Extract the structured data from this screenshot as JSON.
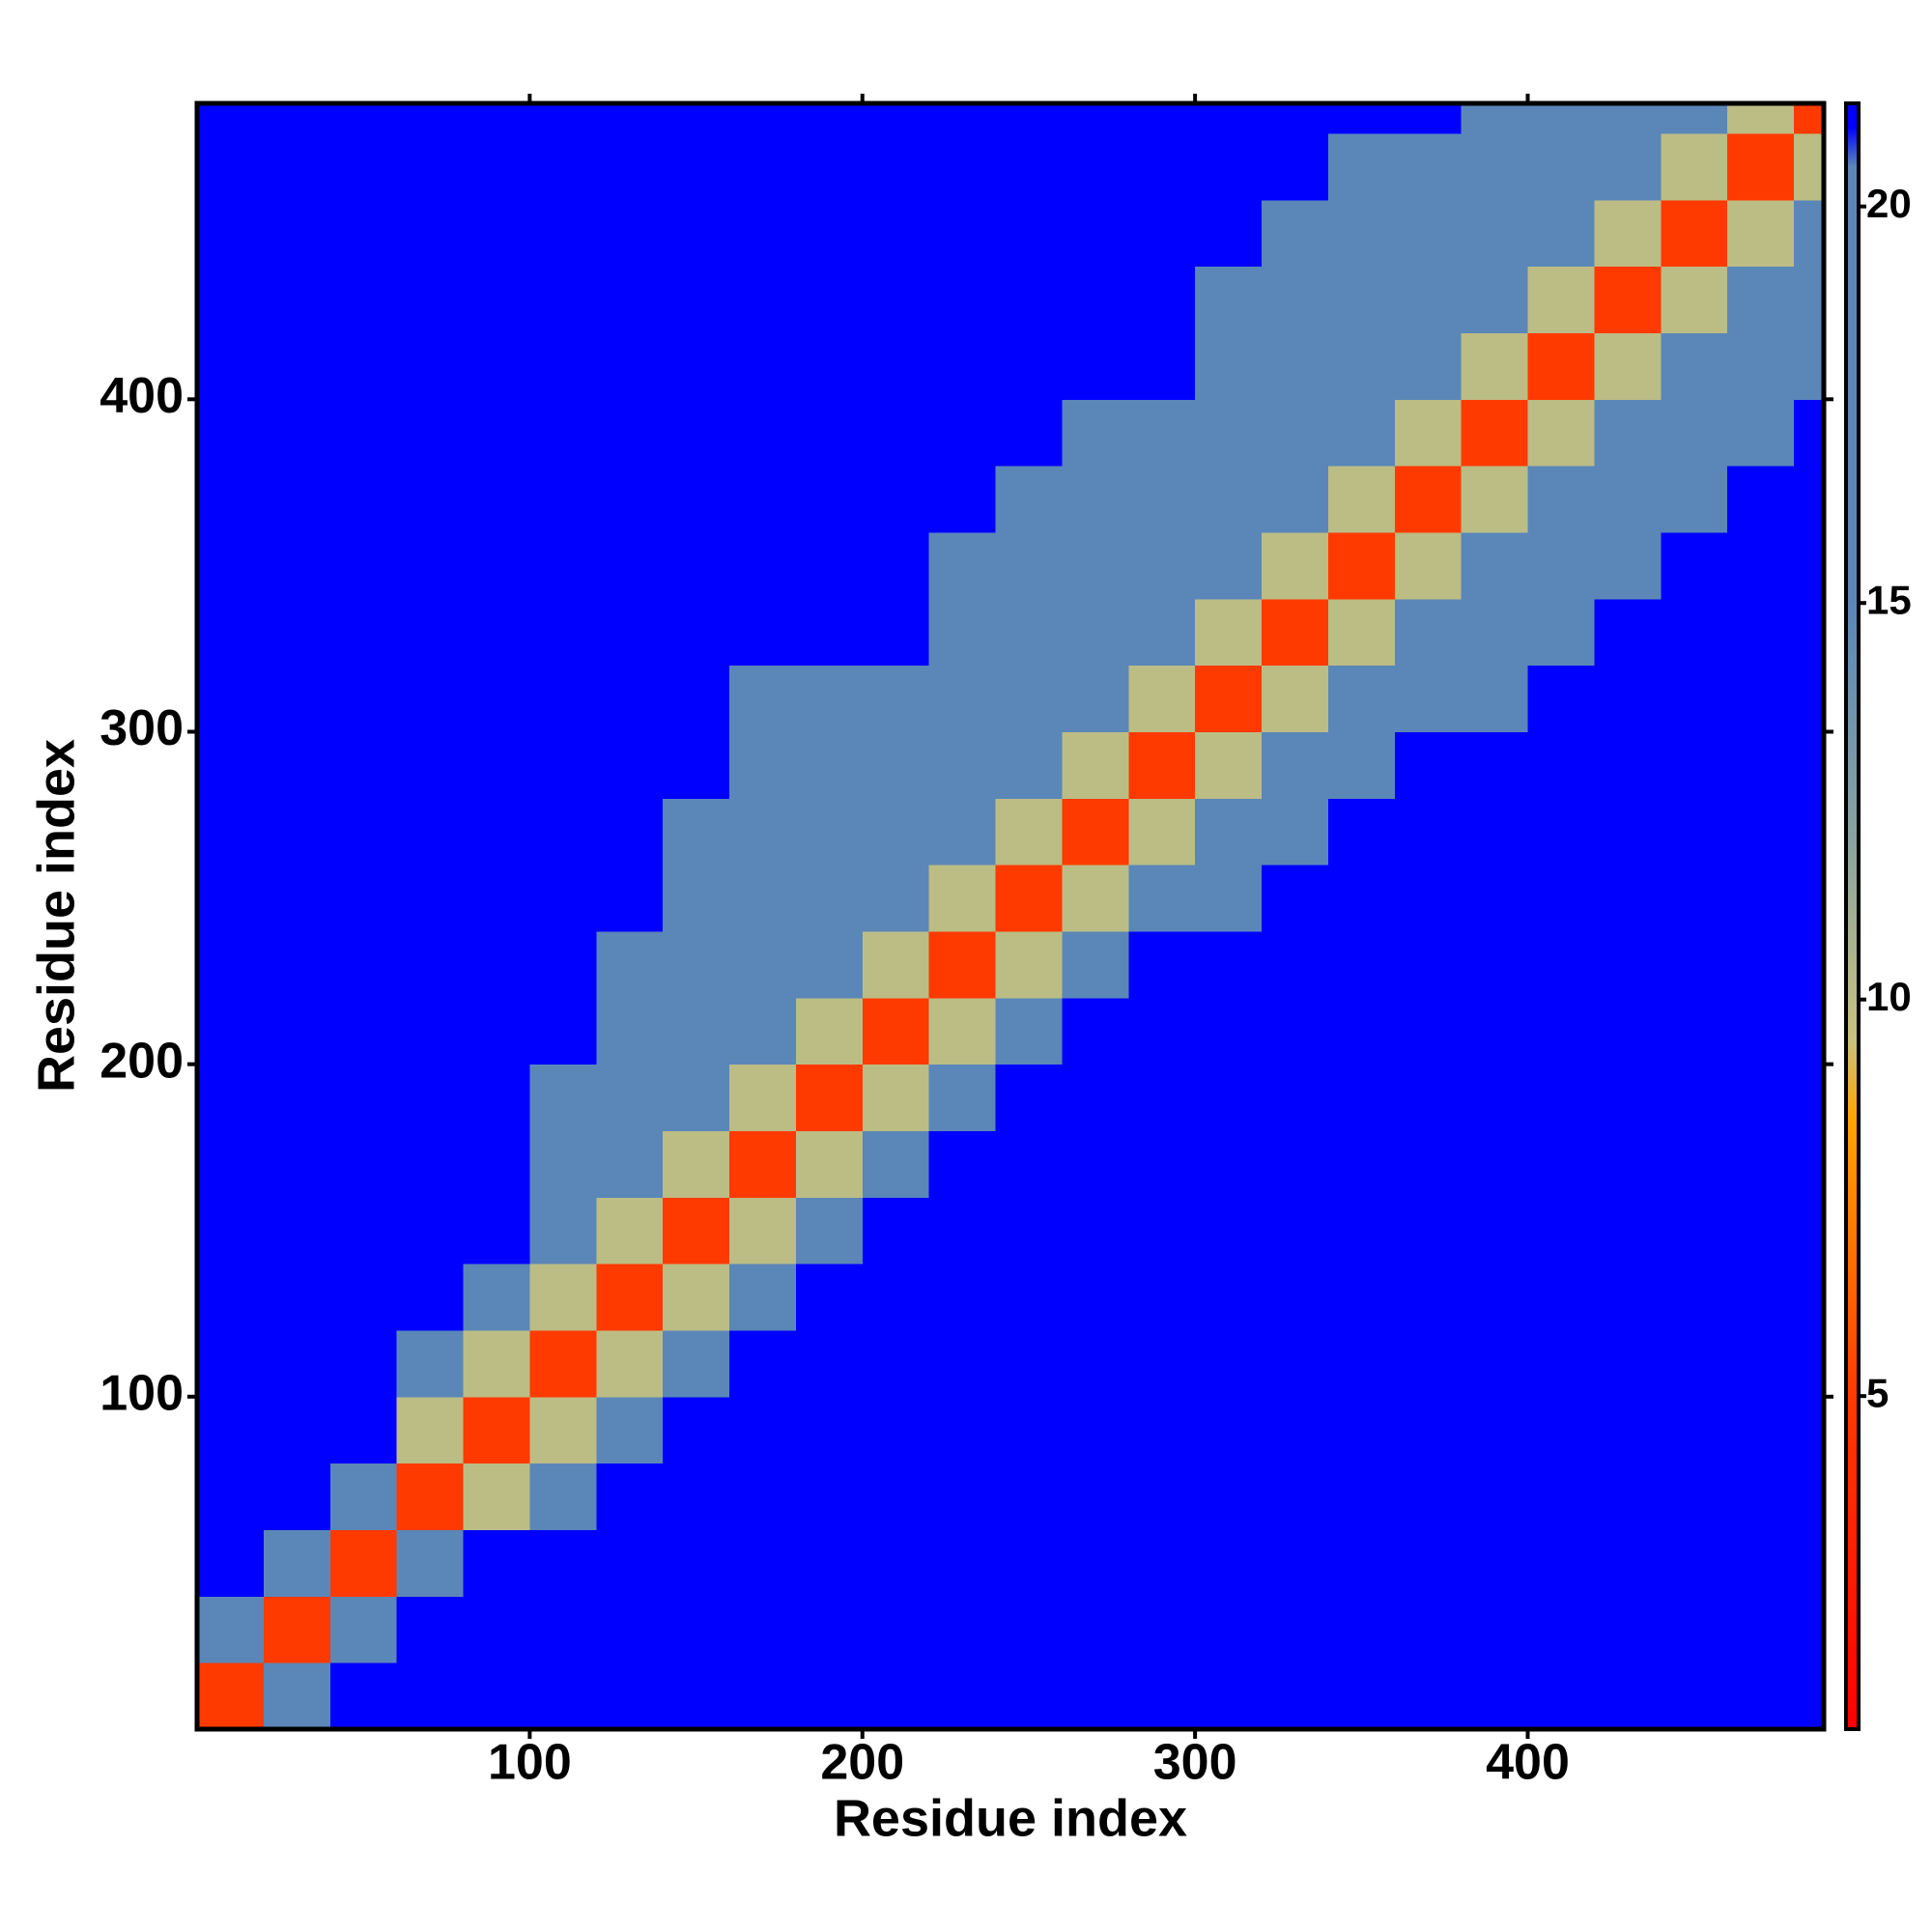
{
  "chart_data": {
    "type": "heatmap",
    "xlabel": "Residue index",
    "ylabel": "Residue index",
    "xlim": [
      0,
      489
    ],
    "ylim": [
      0,
      489
    ],
    "xticks": [
      100,
      200,
      300,
      400
    ],
    "yticks": [
      100,
      200,
      300,
      400
    ],
    "xbins": [
      0,
      20,
      40,
      60,
      80,
      100,
      120,
      140,
      160,
      180,
      200,
      220,
      240,
      260,
      280,
      300,
      320,
      340,
      360,
      380,
      400,
      420,
      440,
      460,
      480,
      489
    ],
    "ybins": [
      0,
      20,
      40,
      60,
      80,
      100,
      120,
      140,
      160,
      180,
      200,
      220,
      240,
      260,
      280,
      300,
      320,
      340,
      360,
      380,
      400,
      420,
      440,
      460,
      480,
      489
    ],
    "z": [
      [
        5,
        20,
        21,
        21,
        21,
        21,
        21,
        21,
        21,
        21,
        21,
        21,
        21,
        21,
        21,
        21,
        21,
        21,
        21,
        21,
        21,
        21,
        21,
        21,
        21
      ],
      [
        20,
        5,
        20,
        21,
        21,
        21,
        21,
        21,
        21,
        21,
        21,
        21,
        21,
        21,
        21,
        21,
        21,
        21,
        21,
        21,
        21,
        21,
        21,
        21,
        21
      ],
      [
        21,
        20,
        5,
        19,
        21,
        21,
        21,
        21,
        21,
        21,
        21,
        21,
        21,
        21,
        21,
        21,
        21,
        21,
        21,
        21,
        21,
        21,
        21,
        21,
        21
      ],
      [
        21,
        21,
        18,
        5,
        10,
        19,
        21,
        21,
        21,
        21,
        21,
        21,
        21,
        21,
        21,
        21,
        21,
        21,
        21,
        21,
        21,
        21,
        21,
        21,
        21
      ],
      [
        21,
        21,
        21,
        10,
        5,
        10,
        19,
        21,
        21,
        21,
        21,
        21,
        21,
        21,
        21,
        21,
        21,
        21,
        21,
        21,
        21,
        21,
        21,
        21,
        21
      ],
      [
        21,
        21,
        21,
        19,
        10,
        5,
        10,
        19,
        21,
        21,
        21,
        21,
        21,
        21,
        21,
        21,
        21,
        21,
        21,
        21,
        21,
        21,
        21,
        21,
        21
      ],
      [
        21,
        21,
        21,
        21,
        19,
        10,
        5,
        10,
        19,
        21,
        21,
        21,
        21,
        21,
        21,
        21,
        21,
        21,
        21,
        21,
        21,
        21,
        21,
        21,
        21
      ],
      [
        21,
        21,
        21,
        21,
        21,
        17,
        10,
        5,
        10,
        19,
        21,
        21,
        21,
        21,
        21,
        21,
        21,
        21,
        21,
        21,
        21,
        21,
        21,
        21,
        21
      ],
      [
        21,
        21,
        21,
        21,
        21,
        17,
        17,
        10,
        5,
        10,
        19,
        21,
        21,
        21,
        21,
        21,
        21,
        21,
        21,
        21,
        21,
        21,
        21,
        21,
        21
      ],
      [
        21,
        21,
        21,
        21,
        21,
        19,
        17,
        17,
        10,
        5,
        10,
        19,
        21,
        21,
        21,
        21,
        21,
        21,
        21,
        21,
        21,
        21,
        21,
        21,
        21
      ],
      [
        21,
        21,
        21,
        21,
        21,
        21,
        17,
        17,
        17,
        10,
        5,
        10,
        19,
        21,
        21,
        21,
        21,
        21,
        21,
        21,
        21,
        21,
        21,
        21,
        21
      ],
      [
        21,
        21,
        21,
        21,
        21,
        21,
        19,
        17,
        17,
        17,
        10,
        5,
        10,
        19,
        21,
        21,
        21,
        21,
        21,
        21,
        21,
        21,
        21,
        21,
        21
      ],
      [
        21,
        21,
        21,
        21,
        21,
        21,
        21,
        17,
        17,
        17,
        17,
        10,
        5,
        10,
        19,
        19,
        21,
        21,
        21,
        21,
        21,
        21,
        21,
        21,
        21
      ],
      [
        21,
        21,
        21,
        21,
        21,
        21,
        21,
        19,
        17,
        17,
        17,
        17,
        10,
        5,
        10,
        17,
        19,
        21,
        21,
        21,
        21,
        21,
        21,
        21,
        21
      ],
      [
        21,
        21,
        21,
        21,
        21,
        21,
        21,
        21,
        17,
        17,
        17,
        17,
        17,
        10,
        5,
        10,
        17,
        19,
        21,
        21,
        21,
        21,
        21,
        21,
        21
      ],
      [
        21,
        21,
        21,
        21,
        21,
        21,
        21,
        21,
        19,
        19,
        19,
        17,
        17,
        17,
        10,
        5,
        10,
        17,
        19,
        19,
        21,
        21,
        21,
        21,
        21
      ],
      [
        21,
        21,
        21,
        21,
        21,
        21,
        21,
        21,
        21,
        21,
        21,
        17,
        17,
        17,
        17,
        10,
        5,
        10,
        17,
        17,
        19,
        21,
        21,
        21,
        21
      ],
      [
        21,
        21,
        21,
        21,
        21,
        21,
        21,
        21,
        21,
        21,
        21,
        19,
        17,
        17,
        17,
        17,
        10,
        5,
        10,
        17,
        17,
        19,
        21,
        21,
        21
      ],
      [
        21,
        21,
        21,
        21,
        21,
        21,
        21,
        21,
        21,
        21,
        21,
        21,
        19,
        17,
        17,
        17,
        17,
        10,
        5,
        10,
        17,
        17,
        19,
        21,
        21
      ],
      [
        21,
        21,
        21,
        21,
        21,
        21,
        21,
        21,
        21,
        21,
        21,
        21,
        21,
        19,
        19,
        17,
        17,
        17,
        10,
        5,
        10,
        17,
        17,
        19,
        21
      ],
      [
        21,
        21,
        21,
        21,
        21,
        21,
        21,
        21,
        21,
        21,
        21,
        21,
        21,
        21,
        21,
        17,
        17,
        17,
        17,
        10,
        5,
        10,
        17,
        17,
        19
      ],
      [
        21,
        21,
        21,
        21,
        21,
        21,
        21,
        21,
        21,
        21,
        21,
        21,
        21,
        21,
        21,
        19,
        17,
        17,
        17,
        17,
        10,
        5,
        10,
        17,
        17
      ],
      [
        21,
        21,
        21,
        21,
        21,
        21,
        21,
        21,
        21,
        21,
        21,
        21,
        21,
        21,
        21,
        21,
        19,
        17,
        17,
        17,
        17,
        10,
        5,
        10,
        17
      ],
      [
        21,
        21,
        21,
        21,
        21,
        21,
        21,
        21,
        21,
        21,
        21,
        21,
        21,
        21,
        21,
        21,
        21,
        19,
        19,
        17,
        17,
        17,
        10,
        5,
        10
      ],
      [
        21,
        21,
        21,
        21,
        21,
        21,
        21,
        21,
        21,
        21,
        21,
        21,
        21,
        21,
        21,
        21,
        21,
        21,
        21,
        19,
        17,
        17,
        17,
        10,
        5
      ]
    ],
    "colorscale": [
      [
        0.8,
        "#ff0000"
      ],
      [
        5,
        "#ff3a00"
      ],
      [
        8.5,
        "#ffa500"
      ],
      [
        9.5,
        "#c9c27e"
      ],
      [
        12,
        "#8aa3a0"
      ],
      [
        15,
        "#5a87b8"
      ],
      [
        20.5,
        "#5a87b8"
      ],
      [
        21,
        "#0000ff"
      ]
    ],
    "colorbar": {
      "lim": [
        0.8,
        21.3
      ],
      "ticks": [
        5,
        10,
        15,
        20
      ]
    }
  }
}
